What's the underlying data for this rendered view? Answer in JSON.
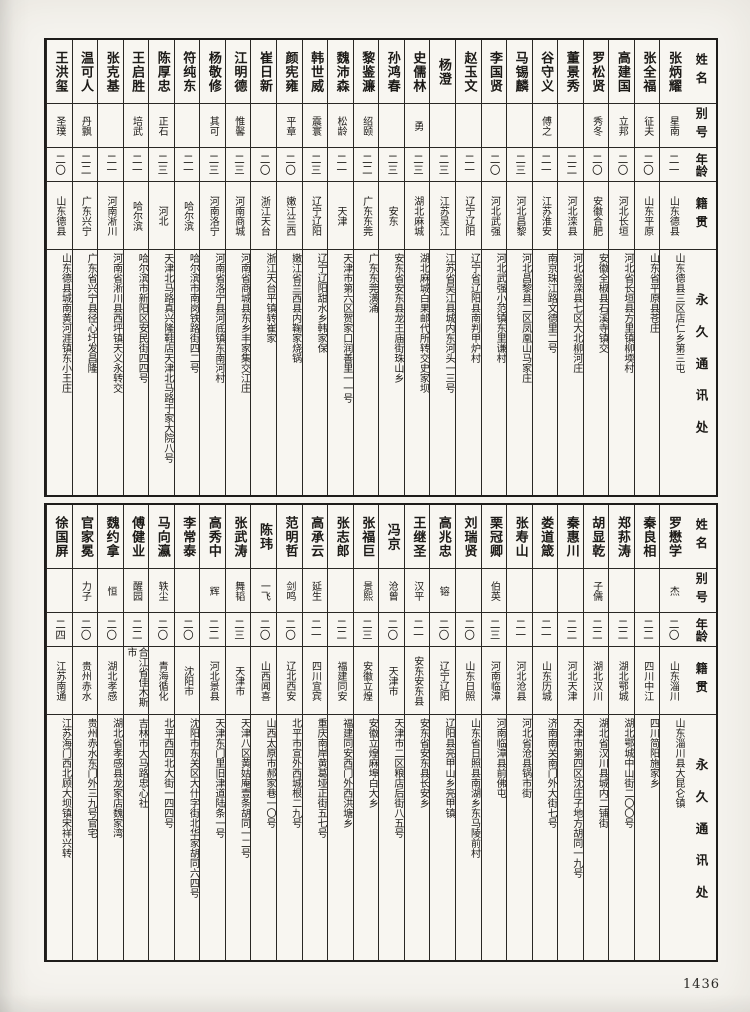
{
  "page": {
    "number": "1436"
  },
  "headers": {
    "name": "姓名",
    "alias": "别号",
    "age": "年龄",
    "native": "籍贯",
    "address": "永久通讯处"
  },
  "tables": [
    {
      "entries": [
        {
          "name": "张炳耀",
          "alias": "星南",
          "age": "二一",
          "native": "山东德县",
          "address": "山东德县三区店仁乡第三屯"
        },
        {
          "name": "张全福",
          "alias": "征夫",
          "age": "二〇",
          "native": "山东平原",
          "address": "山东省平原县苍庄"
        },
        {
          "name": "高建国",
          "alias": "立邦",
          "age": "二〇",
          "native": "河北长垣",
          "address": "河北省长垣县方里镇柳堧村"
        },
        {
          "name": "罗松贤",
          "alias": "秀冬",
          "age": "二〇",
          "native": "安徽合肥",
          "address": "安徽全椒县石溪寺镇交"
        },
        {
          "name": "董景秀",
          "alias": "",
          "age": "二二",
          "native": "河北滦县",
          "address": "河北省滦县七区大北柳河庄"
        },
        {
          "name": "谷守义",
          "alias": "傅之",
          "age": "二一",
          "native": "江苏淮安",
          "address": "南京珠江路文德里二号"
        },
        {
          "name": "马锡麟",
          "alias": "",
          "age": "二三",
          "native": "河北昌黎",
          "address": "河北昌黎县二区凤凰山马家庄"
        },
        {
          "name": "李国贤",
          "alias": "",
          "age": "二〇",
          "native": "河北武强",
          "address": "河北武强小范镇东里谦村"
        },
        {
          "name": "赵玉文",
          "alias": "",
          "age": "二一",
          "native": "辽宁辽阳",
          "address": "辽宁省辽阳县南判甲炉村"
        },
        {
          "name": "杨澄",
          "alias": "",
          "age": "二三",
          "native": "江苏吴江",
          "address": "江苏省吴江县城内东河头一三号"
        },
        {
          "name": "史儒林",
          "alias": "勇",
          "age": "二三",
          "native": "湖北麻城",
          "address": "湖北麻城白果邮代所转交史家坝"
        },
        {
          "name": "孙鸿春",
          "alias": "",
          "age": "二三",
          "native": "安东",
          "address": "安东省安东县龙王庙街珠山乡"
        },
        {
          "name": "黎鉴濂",
          "alias": "绍颐",
          "age": "二二",
          "native": "广东东莞",
          "address": "广东东莞潢涌"
        },
        {
          "name": "魏沛森",
          "alias": "松龄",
          "age": "二一",
          "native": "天津",
          "address": "天津市第六区贺家口润善里一一号"
        },
        {
          "name": "韩世威",
          "alias": "震寰",
          "age": "二三",
          "native": "辽宁辽阳",
          "address": "辽宁辽阳甜水乡韩家保"
        },
        {
          "name": "颜宪雍",
          "alias": "平章",
          "age": "二〇",
          "native": "嫩江兰西",
          "address": "嫩江省兰西县内鞠家烧锅"
        },
        {
          "name": "崔日新",
          "alias": "",
          "age": "二〇",
          "native": "浙江天台",
          "address": "浙江天台平镇转崔家"
        },
        {
          "name": "江明德",
          "alias": "惟馨",
          "age": "二三",
          "native": "河南商城",
          "address": "河南省商城县东乡丰家集交江庄"
        },
        {
          "name": "杨敬修",
          "alias": "其可",
          "age": "二三",
          "native": "河南洛宁",
          "address": "河南省洛宁县河底镇东南河村"
        },
        {
          "name": "符纯东",
          "alias": "",
          "age": "二一",
          "native": "哈尔滨",
          "address": "哈尔滨市南岗铁路街四二号"
        },
        {
          "name": "陈厚忠",
          "alias": "正石",
          "age": "二三",
          "native": "河北",
          "address": "天津北马路真兴隆鞋店天津北马路于家大院八号"
        },
        {
          "name": "王启胜",
          "alias": "培武",
          "age": "二一",
          "native": "哈尔滨",
          "address": "哈尔滨市新阳区安民街四四号"
        },
        {
          "name": "张克基",
          "alias": "",
          "age": "二一",
          "native": "河南淅川",
          "address": "河南省淅川县西坪镇天义永转交"
        },
        {
          "name": "温可人",
          "alias": "丹飘",
          "age": "二二",
          "native": "广东兴宁",
          "address": "广东省兴宁县径心圩发昌隆"
        },
        {
          "name": "王洪玺",
          "alias": "圣璞",
          "age": "二〇",
          "native": "山东德县",
          "address": "山东德县城南黄河涯镇东小王庄"
        }
      ]
    },
    {
      "entries": [
        {
          "name": "罗懋学",
          "alias": "杰",
          "age": "二〇",
          "native": "山东淄川",
          "address": "山东淄川县大昆仑镇"
        },
        {
          "name": "秦良相",
          "alias": "",
          "age": "二二",
          "native": "四川中江",
          "address": "四川简阳施家乡"
        },
        {
          "name": "郑荪涛",
          "alias": "",
          "age": "二二",
          "native": "湖北鄂城",
          "address": "湖北鄂城中山街二〇〇号"
        },
        {
          "name": "胡显乾",
          "alias": "子儒",
          "age": "二二",
          "native": "湖北汉川",
          "address": "湖北省汉川县城内二铺街"
        },
        {
          "name": "秦惠川",
          "alias": "",
          "age": "二二",
          "native": "河北天津",
          "address": "天津市第四区沈庄子地方胡同一九号"
        },
        {
          "name": "娄道箴",
          "alias": "",
          "age": "二一",
          "native": "山东历城",
          "address": "济南南关南门外大街七号"
        },
        {
          "name": "张寿山",
          "alias": "",
          "age": "二一",
          "native": "河北沧县",
          "address": "河北省沧县锅市街"
        },
        {
          "name": "栗冠卿",
          "alias": "伯英",
          "age": "二三",
          "native": "河南临漳",
          "address": "河南临漳县前佛屯"
        },
        {
          "name": "刘瑞贤",
          "alias": "",
          "age": "二〇",
          "native": "山东日照",
          "address": "山东省日照县南湖乡东马陵前村"
        },
        {
          "name": "高兆忠",
          "alias": "镕",
          "age": "二〇",
          "native": "辽宁辽阳",
          "address": "辽阳县亮甲山乡亮甲镇"
        },
        {
          "name": "王继圣",
          "alias": "汉平",
          "age": "二一",
          "native": "安东安东县",
          "address": "安东省安东县长安乡"
        },
        {
          "name": "冯京",
          "alias": "沧曾",
          "age": "二〇",
          "native": "天津市",
          "address": "天津市二区粮店后街八五号"
        },
        {
          "name": "张福巨",
          "alias": "景熙",
          "age": "二三",
          "native": "安徽立煌",
          "address": "安徽立煌麻埠白大乡"
        },
        {
          "name": "张志郎",
          "alias": "",
          "age": "二二",
          "native": "福建同安",
          "address": "福建同安西门外西洪塘乡"
        },
        {
          "name": "高承云",
          "alias": "延生",
          "age": "二一",
          "native": "四川宜宾",
          "address": "重庆南岸黄葛垭正街五七号"
        },
        {
          "name": "范明哲",
          "alias": "剑鸣",
          "age": "二〇",
          "native": "辽北西安",
          "address": "北平市宣外西城根二九号"
        },
        {
          "name": "陈玮",
          "alias": "一飞",
          "age": "二〇",
          "native": "山西闻喜",
          "address": "山西太原市郝家巷一〇号"
        },
        {
          "name": "张武涛",
          "alias": "舞韬",
          "age": "二三",
          "native": "天津市",
          "address": "天津八区黄姑庵壹条胡同一二号"
        },
        {
          "name": "高秀中",
          "alias": "辉",
          "age": "二二",
          "native": "河北景县",
          "address": "天津东门里旧津道陆条一号"
        },
        {
          "name": "李常泰",
          "alias": "",
          "age": "二〇",
          "native": "沈阳市",
          "address": "沈阳市东关区大什字街北华家胡同六四号"
        },
        {
          "name": "马向瀛",
          "alias": "轶尘",
          "age": "二〇",
          "native": "青海循化",
          "address": "北平西四北大街一四四号"
        },
        {
          "name": "傅健业",
          "alias": "醒园",
          "age": "二二",
          "native": "合江省佳木斯市",
          "address": "吉林市大马路忠心社"
        },
        {
          "name": "魏约拿",
          "alias": "恒",
          "age": "二〇",
          "native": "湖北孝感",
          "address": "湖北省孝感县龙家店魏家湾"
        },
        {
          "name": "官家冕",
          "alias": "力子",
          "age": "二〇",
          "native": "贵州赤水",
          "address": "贵州赤水东门外三九号官宅"
        },
        {
          "name": "徐国屏",
          "alias": "",
          "age": "二四",
          "native": "江苏南通",
          "address": "江苏海门西北顾大坝镇宋祥兴转"
        }
      ]
    }
  ]
}
